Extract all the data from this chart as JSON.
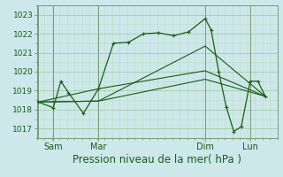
{
  "bg_color": "#cce8ea",
  "grid_color_major": "#a8cca8",
  "grid_color_minor": "#c0dcc0",
  "line_color": "#1a5c1a",
  "spine_color": "#7a9a7a",
  "xlabel": "Pression niveau de la mer( hPa )",
  "ylim": [
    1016.5,
    1023.5
  ],
  "yticks": [
    1017,
    1018,
    1019,
    1020,
    1021,
    1022,
    1023
  ],
  "xlim": [
    0.0,
    8.0
  ],
  "day_labels": [
    "Sam",
    "Mar",
    "Dim",
    "Lun"
  ],
  "day_positions": [
    0.55,
    2.05,
    5.6,
    7.1
  ],
  "vline_positions": [
    0.05,
    0.55,
    2.05,
    5.6,
    7.1
  ],
  "series1_x": [
    0.05,
    0.55,
    0.8,
    1.05,
    1.55,
    2.05,
    2.55,
    3.05,
    3.55,
    4.05,
    4.55,
    5.05,
    5.6,
    5.8,
    6.05,
    6.3,
    6.55,
    6.8,
    7.1,
    7.35,
    7.6
  ],
  "series1_y": [
    1018.4,
    1018.1,
    1019.5,
    1018.9,
    1017.8,
    1019.1,
    1021.5,
    1021.55,
    1022.0,
    1022.05,
    1021.9,
    1022.1,
    1022.8,
    1022.2,
    1020.0,
    1018.15,
    1016.85,
    1017.1,
    1019.5,
    1019.5,
    1018.7
  ],
  "series2_x": [
    0.05,
    2.05,
    5.6,
    7.6
  ],
  "series2_y": [
    1018.4,
    1018.45,
    1021.35,
    1018.7
  ],
  "series3_x": [
    0.05,
    2.05,
    5.6,
    7.6
  ],
  "series3_y": [
    1018.4,
    1019.1,
    1020.05,
    1018.7
  ],
  "series4_x": [
    0.05,
    2.05,
    5.6,
    7.6
  ],
  "series4_y": [
    1018.4,
    1018.45,
    1019.6,
    1018.7
  ],
  "ylabel_fontsize": 6.5,
  "xlabel_fontsize": 8.5,
  "xtick_fontsize": 7,
  "linewidth": 0.9,
  "marker_size": 3.5
}
